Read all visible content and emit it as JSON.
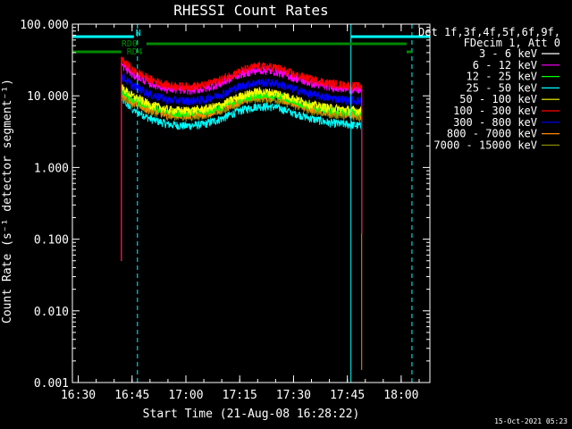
{
  "chart_data": {
    "type": "line",
    "title": "RHESSI Count Rates",
    "xlabel": "Start Time (21-Aug-08 16:28:22)",
    "ylabel": "Count Rate (s⁻¹ detector segment⁻¹)",
    "x_range": [
      "16:28:22",
      "18:08:00"
    ],
    "ylim": [
      0.001,
      100
    ],
    "yscale": "log",
    "x_ticks": [
      "16:30",
      "16:45",
      "17:00",
      "17:15",
      "17:30",
      "17:45",
      "18:00"
    ],
    "y_ticks": [
      "100.000",
      "10.000",
      "1.000",
      "0.100",
      "0.010",
      "0.001"
    ],
    "legend": {
      "position": "right",
      "header": [
        "Det 1f,3f,4f,5f,6f,9f,",
        "FDecim 1, Att 0"
      ],
      "entries": [
        {
          "label": "3 - 6 keV",
          "color": "#ffffff"
        },
        {
          "label": "6 - 12 keV",
          "color": "#ff00ff"
        },
        {
          "label": "12 - 25 keV",
          "color": "#00ff00"
        },
        {
          "label": "25 - 50 keV",
          "color": "#00ffff"
        },
        {
          "label": "50 - 100 keV",
          "color": "#ffff00"
        },
        {
          "label": "100 - 300 keV",
          "color": "#ff0000"
        },
        {
          "label": "300 - 800 keV",
          "color": "#0000ff"
        },
        {
          "label": "800 - 7000 keV",
          "color": "#ff8800"
        },
        {
          "label": "7000 - 15000 keV",
          "color": "#888800"
        }
      ]
    },
    "series": [
      {
        "name": "3 - 6 keV",
        "color": "#000000",
        "x": [
          "16:42",
          "16:45",
          "16:50",
          "16:55",
          "17:00",
          "17:05",
          "17:10",
          "17:15",
          "17:20",
          "17:25",
          "17:30",
          "17:35",
          "17:40",
          "17:45",
          "17:49"
        ],
        "y": [
          10,
          7.5,
          6,
          5.2,
          5,
          5.3,
          6.2,
          8,
          9,
          8.5,
          7,
          6,
          5.5,
          5.2,
          5
        ]
      },
      {
        "name": "6 - 12 keV",
        "color": "#ff00ff",
        "x": [
          "16:42",
          "16:45",
          "16:50",
          "16:55",
          "17:00",
          "17:05",
          "17:10",
          "17:15",
          "17:20",
          "17:25",
          "17:30",
          "17:35",
          "17:40",
          "17:45",
          "17:49"
        ],
        "y": [
          27,
          20,
          15,
          12.5,
          12,
          12.5,
          15,
          20,
          23,
          22,
          18,
          15,
          13.5,
          12.5,
          12
        ]
      },
      {
        "name": "12 - 25 keV",
        "color": "#00ff00",
        "x": [
          "16:42",
          "16:45",
          "16:50",
          "16:55",
          "17:00",
          "17:05",
          "17:10",
          "17:15",
          "17:20",
          "17:25",
          "17:30",
          "17:35",
          "17:40",
          "17:45",
          "17:49"
        ],
        "y": [
          12,
          9,
          7,
          6,
          5.8,
          6,
          7,
          9,
          10.5,
          10,
          8.5,
          7,
          6.3,
          6,
          5.8
        ]
      },
      {
        "name": "25 - 50 keV",
        "color": "#00ffff",
        "x": [
          "16:42",
          "16:45",
          "16:50",
          "16:55",
          "17:00",
          "17:05",
          "17:10",
          "17:15",
          "17:20",
          "17:25",
          "17:30",
          "17:35",
          "17:40",
          "17:45",
          "17:49"
        ],
        "y": [
          9,
          6.5,
          4.8,
          4,
          3.8,
          4,
          4.8,
          6.2,
          7.2,
          7,
          5.8,
          4.8,
          4.2,
          4,
          3.8
        ]
      },
      {
        "name": "50 - 100 keV",
        "color": "#ffff00",
        "x": [
          "16:42",
          "16:45",
          "16:50",
          "16:55",
          "17:00",
          "17:05",
          "17:10",
          "17:15",
          "17:20",
          "17:25",
          "17:30",
          "17:35",
          "17:40",
          "17:45",
          "17:49"
        ],
        "y": [
          13,
          10,
          7.5,
          6.4,
          6.2,
          6.5,
          7.5,
          9.8,
          11.5,
          11,
          9.2,
          7.5,
          6.8,
          6.4,
          6.2
        ]
      },
      {
        "name": "100 - 300 keV",
        "color": "#ff0000",
        "x": [
          "16:42",
          "16:45",
          "16:50",
          "16:55",
          "17:00",
          "17:05",
          "17:10",
          "17:15",
          "17:20",
          "17:25",
          "17:30",
          "17:35",
          "17:40",
          "17:45",
          "17:49"
        ],
        "y": [
          32,
          23,
          17,
          14,
          13.5,
          14,
          17,
          22,
          26,
          25,
          20,
          17,
          15,
          14,
          13.5
        ]
      },
      {
        "name": "300 - 800 keV",
        "color": "#0000ff",
        "x": [
          "16:42",
          "16:45",
          "16:50",
          "16:55",
          "17:00",
          "17:05",
          "17:10",
          "17:15",
          "17:20",
          "17:25",
          "17:30",
          "17:35",
          "17:40",
          "17:45",
          "17:49"
        ],
        "y": [
          19,
          14,
          10.5,
          8.8,
          8.5,
          8.8,
          10.5,
          13.5,
          15.5,
          15,
          12.5,
          10.5,
          9.4,
          8.8,
          8.5
        ]
      },
      {
        "name": "800 - 7000 keV",
        "color": "#ff8800",
        "x": [
          "16:42",
          "16:45",
          "16:50",
          "16:55",
          "17:00",
          "17:05",
          "17:10",
          "17:15",
          "17:20",
          "17:25",
          "17:30",
          "17:35",
          "17:40",
          "17:45",
          "17:49"
        ],
        "y": [
          11,
          8.2,
          6.4,
          5.6,
          5.4,
          5.6,
          6.5,
          8.5,
          9.8,
          9.4,
          8,
          6.5,
          5.9,
          5.6,
          5.4
        ]
      },
      {
        "name": "7000 - 15000 keV",
        "color": "#888800",
        "x": [
          "16:42",
          "16:45",
          "16:50",
          "16:55",
          "17:00",
          "17:05",
          "17:10",
          "17:15",
          "17:20",
          "17:25",
          "17:30",
          "17:35",
          "17:40",
          "17:45",
          "17:49"
        ],
        "y": [
          10,
          7.8,
          6.1,
          5.3,
          5.1,
          5.4,
          6.3,
          8.1,
          9.3,
          8.9,
          7.5,
          6.2,
          5.6,
          5.3,
          5.1
        ]
      }
    ],
    "state_bars": [
      {
        "label": "N",
        "color": "#00ffff",
        "intervals": [
          [
            "16:28:22",
            "16:45:30"
          ],
          [
            "17:46:00",
            "18:08:00"
          ]
        ],
        "markers": [
          "16:28:22",
          "16:46:30",
          "17:46:00",
          "18:03:00"
        ]
      },
      {
        "label": "RD0",
        "color": "#008800",
        "intervals": [
          [
            "16:49:00",
            "18:01:30"
          ]
        ]
      },
      {
        "label": "RD4",
        "color": "#008800",
        "intervals": [
          [
            "16:28:22",
            "16:42:00"
          ],
          [
            "18:01:30",
            "18:03:00"
          ]
        ]
      }
    ]
  },
  "footer": {
    "timestamp": "15-Oct-2021 05:23"
  }
}
